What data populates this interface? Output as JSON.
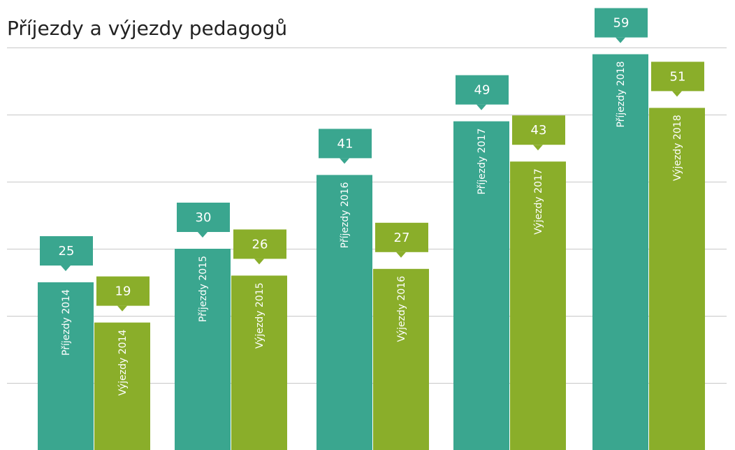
{
  "chart_data": {
    "type": "bar",
    "title": "Příjezdy a výjezdy pedagogů",
    "ylim": [
      0,
      60
    ],
    "yticks": [
      0,
      10,
      20,
      30,
      40,
      50,
      60
    ],
    "grid": true,
    "series": [
      {
        "color": "#3aa68f",
        "values": [
          25,
          30,
          41,
          49,
          59
        ],
        "labels": [
          "Příjezdy 2014",
          "Příjezdy 2015",
          "Příjezdy 2016",
          "Příjezdy 2017",
          "Příjezdy 2018"
        ]
      },
      {
        "color": "#8aae2a",
        "values": [
          19,
          26,
          27,
          43,
          51
        ],
        "labels": [
          "Výjezdy 2014",
          "Výjezdy 2015",
          "Výjezdy 2016",
          "Výjezdy 2017",
          "Výjezdy 2018"
        ]
      }
    ]
  }
}
